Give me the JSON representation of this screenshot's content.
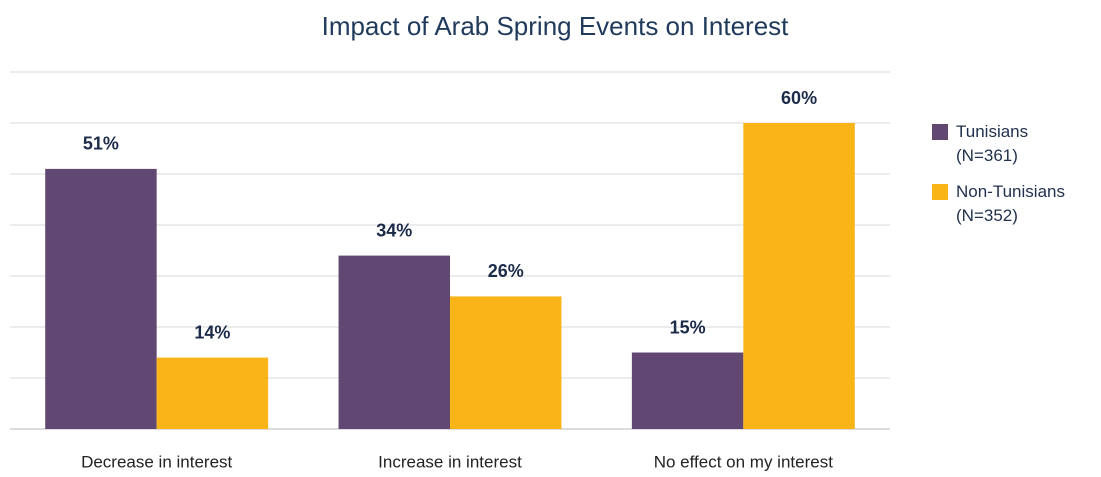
{
  "chart_data": {
    "type": "bar",
    "title": "Impact of Arab Spring Events on Interest",
    "categories": [
      "Decrease in interest",
      "Increase in interest",
      "No effect on my interest"
    ],
    "series": [
      {
        "name": "Tunisians (N=361)",
        "color": "#614873",
        "values": [
          51,
          34,
          15
        ],
        "value_labels": [
          "51%",
          "34%",
          "15%"
        ]
      },
      {
        "name": "Non-Tunisians (N=352)",
        "color": "#f9b418",
        "values": [
          14,
          26,
          60
        ],
        "value_labels": [
          "14%",
          "26%",
          "60%"
        ]
      }
    ],
    "ylim": [
      0,
      70
    ],
    "yticks": [
      0,
      10,
      20,
      30,
      40,
      50,
      60,
      70
    ],
    "grid": true,
    "legend": "right"
  }
}
